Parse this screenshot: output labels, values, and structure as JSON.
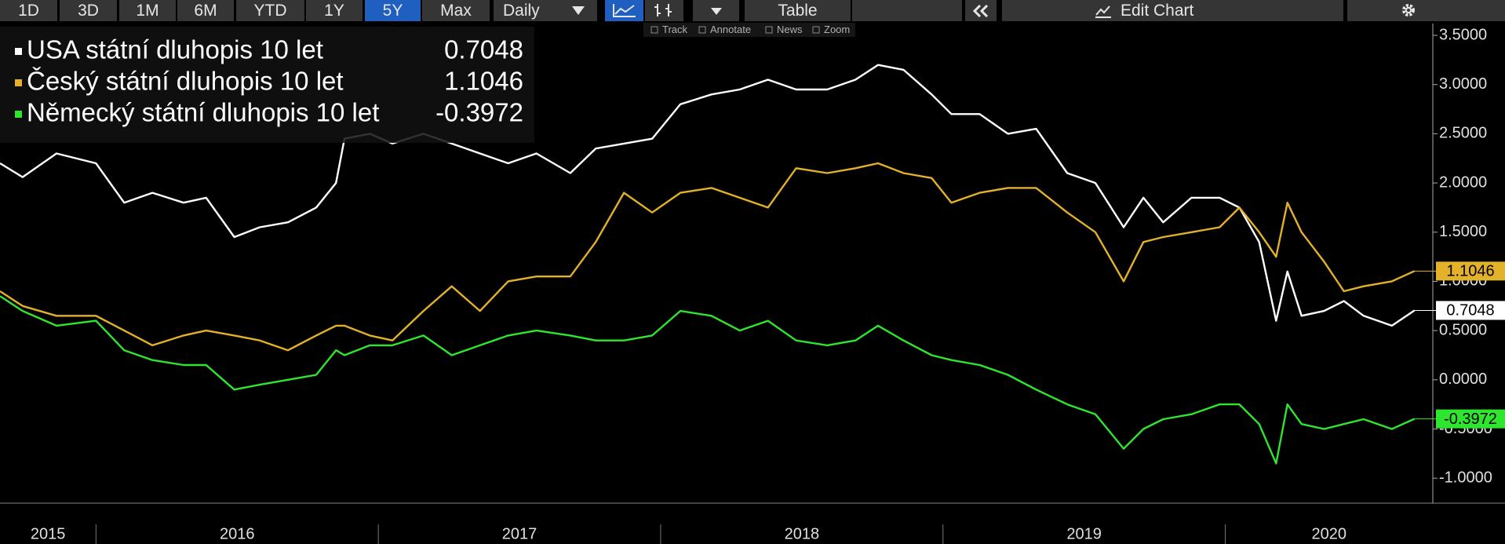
{
  "toolbar": {
    "ranges": [
      "1D",
      "3D",
      "1M",
      "6M",
      "YTD",
      "1Y",
      "5Y",
      "Max"
    ],
    "active_range": "5Y",
    "frequency": "Daily",
    "table": "Table",
    "edit": "Edit Chart",
    "tools": [
      "Track",
      "Annotate",
      "News",
      "Zoom"
    ]
  },
  "chart_data": {
    "type": "line",
    "x": [
      2015.66,
      2015.74,
      2015.86,
      2016.0,
      2016.1,
      2016.2,
      2016.31,
      2016.39,
      2016.49,
      2016.58,
      2016.68,
      2016.78,
      2016.85,
      2016.88,
      2016.97,
      2017.05,
      2017.16,
      2017.26,
      2017.36,
      2017.46,
      2017.56,
      2017.68,
      2017.77,
      2017.87,
      2017.97,
      2018.07,
      2018.18,
      2018.28,
      2018.38,
      2018.48,
      2018.59,
      2018.69,
      2018.77,
      2018.86,
      2018.96,
      2019.03,
      2019.13,
      2019.23,
      2019.33,
      2019.44,
      2019.54,
      2019.64,
      2019.71,
      2019.78,
      2019.88,
      2019.98,
      2020.05,
      2020.12,
      2020.18,
      2020.22,
      2020.27,
      2020.35,
      2020.42,
      2020.49,
      2020.59,
      2020.67
    ],
    "xlim": [
      2015.66,
      2020.735
    ],
    "xticks": [
      {
        "value": 2015,
        "label": "2015"
      },
      {
        "value": 2016,
        "label": "2016"
      },
      {
        "value": 2017,
        "label": "2017"
      },
      {
        "value": 2018,
        "label": "2018"
      },
      {
        "value": 2019,
        "label": "2019"
      },
      {
        "value": 2020,
        "label": "2020"
      }
    ],
    "ylim": [
      -1.23,
      3.62
    ],
    "yticks": [
      {
        "value": 3.5,
        "label": "3.5000"
      },
      {
        "value": 3,
        "label": "3.0000"
      },
      {
        "value": 2.5,
        "label": "2.5000"
      },
      {
        "value": 2,
        "label": "2.0000"
      },
      {
        "value": 1.5,
        "label": "1.5000"
      },
      {
        "value": 1,
        "label": "1.0000"
      },
      {
        "value": 0.5,
        "label": "0.5000"
      },
      {
        "value": 0,
        "label": "0.0000"
      },
      {
        "value": -0.5,
        "label": "-0.5000"
      },
      {
        "value": -1,
        "label": "-1.0000"
      }
    ],
    "series": [
      {
        "name": "USA státní dluhopis 10 let",
        "color": "#ffffff",
        "values": [
          2.2,
          2.06,
          2.3,
          2.2,
          1.8,
          1.9,
          1.8,
          1.85,
          1.45,
          1.55,
          1.6,
          1.75,
          2.0,
          2.45,
          2.5,
          2.4,
          2.5,
          2.4,
          2.3,
          2.2,
          2.3,
          2.1,
          2.35,
          2.4,
          2.45,
          2.8,
          2.9,
          2.95,
          3.05,
          2.95,
          2.95,
          3.05,
          3.2,
          3.15,
          2.9,
          2.7,
          2.7,
          2.5,
          2.55,
          2.1,
          2.0,
          1.55,
          1.85,
          1.6,
          1.85,
          1.85,
          1.75,
          1.4,
          0.6,
          1.1,
          0.65,
          0.7,
          0.8,
          0.65,
          0.55,
          0.7048
        ]
      },
      {
        "name": "Český státní dluhopis 10 let",
        "color": "#e3b12a",
        "values": [
          0.9,
          0.75,
          0.65,
          0.65,
          0.5,
          0.35,
          0.45,
          0.5,
          0.45,
          0.4,
          0.3,
          0.45,
          0.55,
          0.55,
          0.45,
          0.4,
          0.7,
          0.95,
          0.7,
          1.0,
          1.05,
          1.05,
          1.4,
          1.9,
          1.7,
          1.9,
          1.95,
          1.85,
          1.75,
          2.15,
          2.1,
          2.15,
          2.2,
          2.1,
          2.05,
          1.8,
          1.9,
          1.95,
          1.95,
          1.7,
          1.5,
          1.0,
          1.4,
          1.45,
          1.5,
          1.55,
          1.75,
          1.5,
          1.25,
          1.8,
          1.5,
          1.2,
          0.9,
          0.95,
          1.0,
          1.1046
        ]
      },
      {
        "name": "Německý státní dluhopis 10 let",
        "color": "#2ee62e",
        "values": [
          0.85,
          0.7,
          0.55,
          0.6,
          0.3,
          0.2,
          0.15,
          0.15,
          -0.1,
          -0.05,
          0.0,
          0.05,
          0.3,
          0.25,
          0.35,
          0.35,
          0.45,
          0.25,
          0.35,
          0.45,
          0.5,
          0.45,
          0.4,
          0.4,
          0.45,
          0.7,
          0.65,
          0.5,
          0.6,
          0.4,
          0.35,
          0.4,
          0.55,
          0.4,
          0.25,
          0.2,
          0.15,
          0.05,
          -0.1,
          -0.25,
          -0.35,
          -0.7,
          -0.5,
          -0.4,
          -0.35,
          -0.25,
          -0.25,
          -0.45,
          -0.85,
          -0.25,
          -0.45,
          -0.5,
          -0.45,
          -0.4,
          -0.5,
          -0.3972
        ]
      }
    ]
  }
}
